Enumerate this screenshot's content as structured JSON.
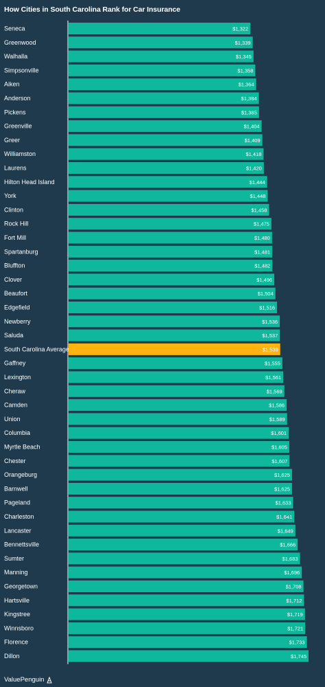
{
  "chart_data": {
    "type": "bar",
    "orientation": "horizontal",
    "title": "How Cities in South Carolina Rank for Car Insurance",
    "xlim": [
      0,
      1745
    ],
    "grid": false,
    "legend": "none",
    "categories": [
      "Seneca",
      "Greenwood",
      "Walhalla",
      "Simpsonville",
      "Aiken",
      "Anderson",
      "Pickens",
      "Greenville",
      "Greer",
      "Williamston",
      "Laurens",
      "Hilton Head Island",
      "York",
      "Clinton",
      "Rock Hill",
      "Fort Mill",
      "Spartanburg",
      "Bluffton",
      "Clover",
      "Beaufort",
      "Edgefield",
      "Newberry",
      "Saluda",
      "South Carolina Average",
      "Gaffney",
      "Lexington",
      "Cheraw",
      "Camden",
      "Union",
      "Columbia",
      "Myrtle Beach",
      "Chester",
      "Orangeburg",
      "Barnwell",
      "Pageland",
      "Charleston",
      "Lancaster",
      "Bennettsville",
      "Sumter",
      "Manning",
      "Georgetown",
      "Hartsville",
      "Kingstree",
      "Winnsboro",
      "Florence",
      "Dillon"
    ],
    "values": [
      1322,
      1339,
      1345,
      1358,
      1364,
      1384,
      1385,
      1404,
      1409,
      1418,
      1420,
      1444,
      1448,
      1458,
      1475,
      1480,
      1481,
      1482,
      1496,
      1504,
      1516,
      1536,
      1537,
      1539,
      1555,
      1561,
      1569,
      1586,
      1589,
      1601,
      1605,
      1607,
      1625,
      1625,
      1633,
      1641,
      1649,
      1666,
      1683,
      1696,
      1708,
      1712,
      1719,
      1721,
      1733,
      1745
    ],
    "value_labels": [
      "$1,322",
      "$1,339",
      "$1,345",
      "$1,358",
      "$1,364",
      "$1,384",
      "$1,385",
      "$1,404",
      "$1,409",
      "$1,418",
      "$1,420",
      "$1,444",
      "$1,448",
      "$1,458",
      "$1,475",
      "$1,480",
      "$1,481",
      "$1,482",
      "$1,496",
      "$1,504",
      "$1,516",
      "$1,536",
      "$1,537",
      "$1,539",
      "$1,555",
      "$1,561",
      "$1,569",
      "$1,586",
      "$1,589",
      "$1,601",
      "$1,605",
      "$1,607",
      "$1,625",
      "$1,625",
      "$1,633",
      "$1,641",
      "$1,649",
      "$1,666",
      "$1,683",
      "$1,696",
      "$1,708",
      "$1,712",
      "$1,719",
      "$1,721",
      "$1,733",
      "$1,745"
    ],
    "highlight_category": "South Carolina Average",
    "colors": {
      "bar": "#0fb89d",
      "highlight": "#ffb30f",
      "background": "#1e3a4c"
    }
  },
  "footer": {
    "brand": "ValuePenguin",
    "icon": "valuepenguin-logo-icon"
  }
}
